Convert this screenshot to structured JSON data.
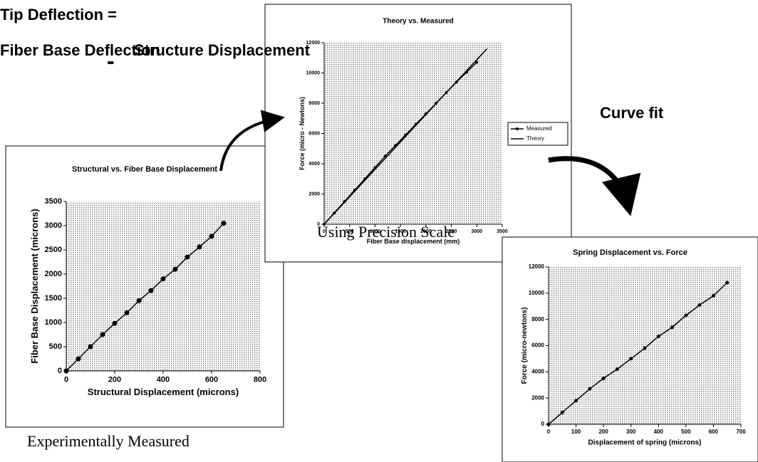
{
  "heading": {
    "line1": "Tip Deflection =",
    "left": "Fiber Base Deflection",
    "minus": "-",
    "right": "Structure Displacement"
  },
  "annotations": {
    "curve_fit": "Curve fit",
    "precision": "Using Precision Scale",
    "measured": "Experimentally Measured"
  },
  "chart_data": [
    {
      "type": "line",
      "title": "Structural vs. Fiber Base Displacement",
      "x_label": "Structural  Displacement (microns)",
      "y_label": "Fiber Base  Displacement (microns)",
      "x": [
        0,
        50,
        100,
        150,
        200,
        250,
        300,
        350,
        400,
        450,
        500,
        550,
        600,
        650
      ],
      "values": [
        0,
        250,
        500,
        750,
        980,
        1200,
        1450,
        1660,
        1900,
        2100,
        2350,
        2560,
        2780,
        3050
      ],
      "color": "#000000",
      "xlim": [
        0,
        800
      ],
      "xticks": [
        0,
        200,
        400,
        600,
        800
      ],
      "ylim": [
        0,
        3500
      ],
      "yticks": [
        0,
        500,
        1000,
        1500,
        2000,
        2500,
        3000,
        3500
      ]
    },
    {
      "type": "line",
      "title": "Theory vs. Measured",
      "x_label": "Fiber Base displacement (mm)",
      "y_label": "Force (micro - Newtons)",
      "series": [
        {
          "name": "Measured",
          "color": "#000000",
          "x": [
            0,
            200,
            400,
            600,
            800,
            1000,
            1200,
            1400,
            1600,
            1800,
            2000,
            2200,
            2400,
            2600,
            2800,
            3000
          ],
          "values": [
            0,
            750,
            1500,
            2250,
            3000,
            3750,
            4500,
            5200,
            5900,
            6600,
            7300,
            8000,
            8700,
            9400,
            10050,
            10700
          ]
        },
        {
          "name": "Theory",
          "color": "#000000",
          "x": [
            0,
            3200
          ],
          "values": [
            0,
            11600
          ]
        }
      ],
      "xlim": [
        0,
        3500
      ],
      "xticks": [
        0,
        500,
        1000,
        1500,
        2000,
        2500,
        3000,
        3500
      ],
      "ylim": [
        0,
        12000
      ],
      "yticks": [
        0,
        2000,
        4000,
        6000,
        8000,
        10000,
        12000
      ],
      "legend": "right"
    },
    {
      "type": "line",
      "title": "Spring Displacement vs. Force",
      "x_label": "Displacement of spring (microns)",
      "y_label": "Force (micro-newtons)",
      "x": [
        0,
        50,
        100,
        150,
        200,
        250,
        300,
        350,
        400,
        450,
        500,
        550,
        600,
        650
      ],
      "values": [
        0,
        900,
        1800,
        2700,
        3500,
        4200,
        5000,
        5800,
        6700,
        7400,
        8300,
        9100,
        9800,
        10800
      ],
      "color": "#000000",
      "xlim": [
        0,
        700
      ],
      "xticks": [
        0,
        100,
        200,
        300,
        400,
        500,
        600,
        700
      ],
      "ylim": [
        0,
        12000
      ],
      "yticks": [
        0,
        2000,
        4000,
        6000,
        8000,
        10000,
        12000
      ]
    }
  ]
}
